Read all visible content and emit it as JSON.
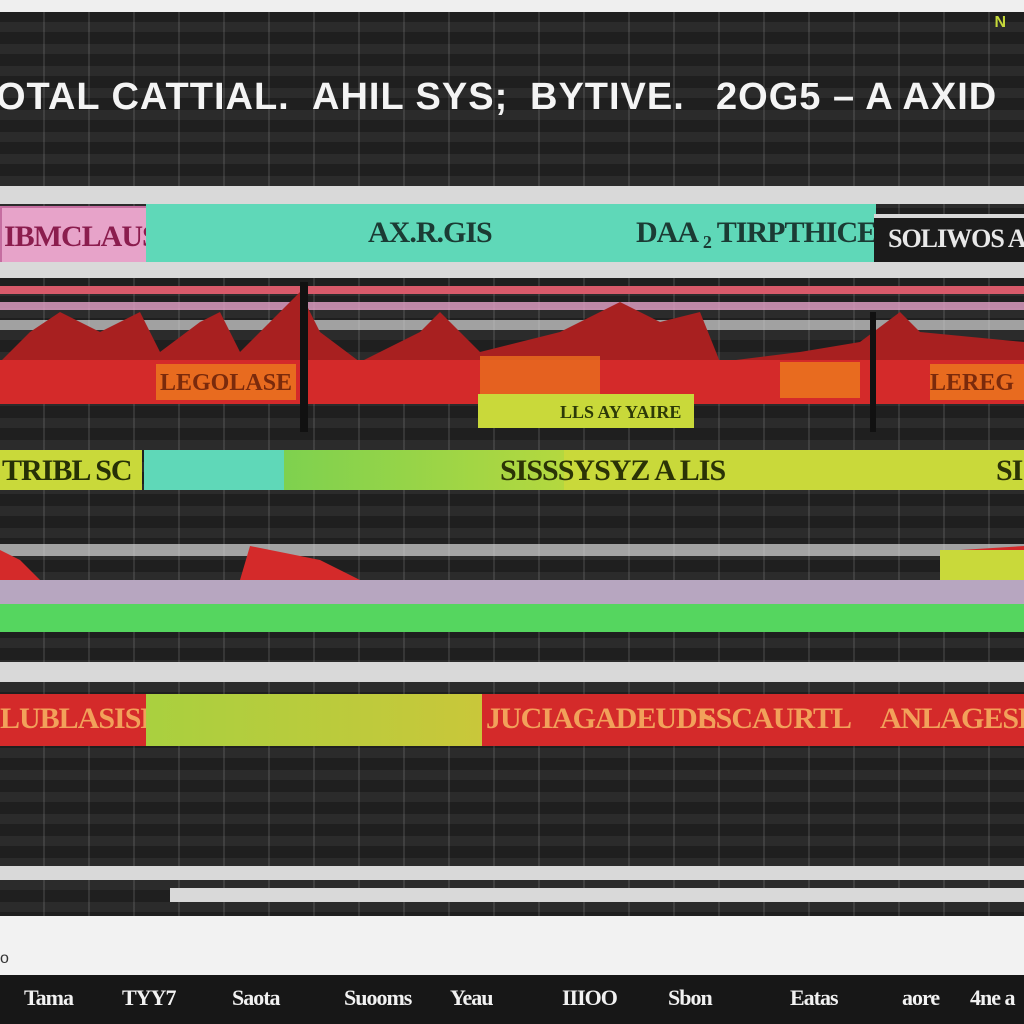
{
  "header": {
    "corner_glyph": "N",
    "title_parts": [
      "OTAL CATTIAL.",
      "AHIL SYS;",
      "BYTIVE.",
      "2OG5 – A AXID"
    ]
  },
  "bands": {
    "row1": {
      "left_label": "IBMCLAUS",
      "teal_label": "AX.R.GIS",
      "right_label": "DAA ₂ TIRPTHICE",
      "dark_label": "SOLIWOS A"
    },
    "row2": {
      "left_label": "TRIBL SC",
      "center_label": "SISSSYSYZ A LIS",
      "right_label": "SI"
    },
    "row3": {
      "orange_labels": [
        "LUBLASISE",
        "JUCIAGADEUDE",
        "SSCAURTL",
        "ANLAGESE"
      ]
    },
    "inner": {
      "orange_label_a": "LEGOLASE",
      "orange_label_b": "LEREG",
      "yellow_label": "LLS AY YAIRE"
    }
  },
  "footer": {
    "zero_mark": "o",
    "ticks": [
      "Tama",
      "TYY7",
      "Saota",
      "Suooms",
      "Yeau",
      "IIIOO",
      "Sbon",
      "Eatas",
      "aore",
      "4ne a"
    ]
  },
  "colors": {
    "teal": "#5fd8b8",
    "pink": "#e7a3c9",
    "red": "#d42a2a",
    "orange": "#e86b1f",
    "yellow": "#c9d93a",
    "green": "#55d65f"
  }
}
